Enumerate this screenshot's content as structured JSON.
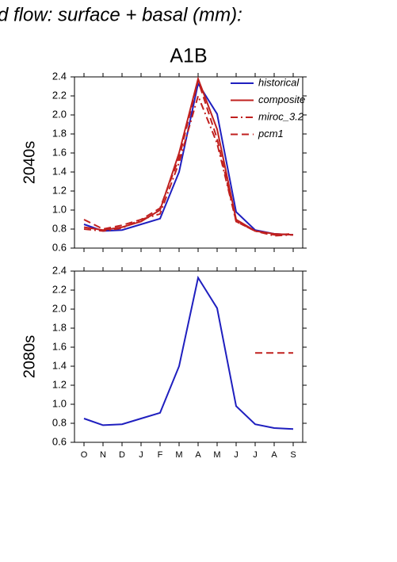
{
  "chart_data": [
    {
      "type": "line",
      "title": "d flow: surface + basal (mm):",
      "subtitle": "A1B",
      "ylabel": "2040s",
      "categories": [
        null,
        null,
        null,
        null,
        null,
        null,
        null,
        null,
        null,
        null,
        null,
        null
      ],
      "ylim": [
        0.6,
        2.4
      ],
      "yticks": [
        0.6,
        0.8,
        {
          "value": 1.0,
          "label": "1.0"
        },
        1.2,
        1.4,
        1.6,
        1.8,
        {
          "value": 2.0,
          "label": "2.0"
        },
        2.2,
        2.4
      ],
      "legend": "upper right",
      "series": [
        {
          "name": "historical",
          "color": "#1f1fbf",
          "linestyle": "solid",
          "values": [
            0.85,
            0.78,
            0.79,
            0.85,
            0.91,
            1.4,
            2.33,
            2.01,
            0.98,
            0.79,
            0.75,
            0.74
          ]
        },
        {
          "name": "composite",
          "color": "#c0201f",
          "linestyle": "solid",
          "values": [
            0.82,
            0.79,
            0.82,
            0.88,
            1.0,
            1.6,
            2.38,
            1.85,
            0.9,
            0.78,
            0.75,
            0.74
          ]
        },
        {
          "name": "miroc_3.2",
          "color": "#c0201f",
          "linestyle": "dashdot",
          "values": [
            0.8,
            0.78,
            0.81,
            0.9,
            0.96,
            1.5,
            2.2,
            1.7,
            0.88,
            0.78,
            0.73,
            0.74
          ]
        },
        {
          "name": "pcm1",
          "color": "#c0201f",
          "linestyle": "dashed",
          "values": [
            0.9,
            0.8,
            0.84,
            0.9,
            1.02,
            1.55,
            2.36,
            1.75,
            0.88,
            0.78,
            0.74,
            0.75
          ]
        }
      ]
    },
    {
      "type": "line",
      "ylabel": "2080s",
      "categories": [
        "O",
        "N",
        "D",
        "J",
        "F",
        "M",
        "A",
        "M",
        "J",
        "J",
        "A",
        "S"
      ],
      "ylim": [
        0.6,
        2.4
      ],
      "yticks": [
        0.6,
        0.8,
        {
          "value": 1.0,
          "label": "1.0"
        },
        1.2,
        1.4,
        1.6,
        1.8,
        {
          "value": 2.0,
          "label": "2.0"
        },
        2.2,
        2.4
      ],
      "series": [
        {
          "color": "#1f1fbf",
          "linestyle": "solid",
          "values": [
            0.85,
            0.78,
            0.79,
            0.85,
            0.91,
            1.4,
            2.33,
            2.01,
            0.98,
            0.79,
            0.75,
            0.74
          ]
        },
        {
          "color": "#c0201f",
          "linestyle": "dashed",
          "values": [
            null,
            null,
            null,
            null,
            null,
            null,
            null,
            null,
            null,
            1.54,
            1.54,
            1.54
          ]
        }
      ]
    }
  ]
}
